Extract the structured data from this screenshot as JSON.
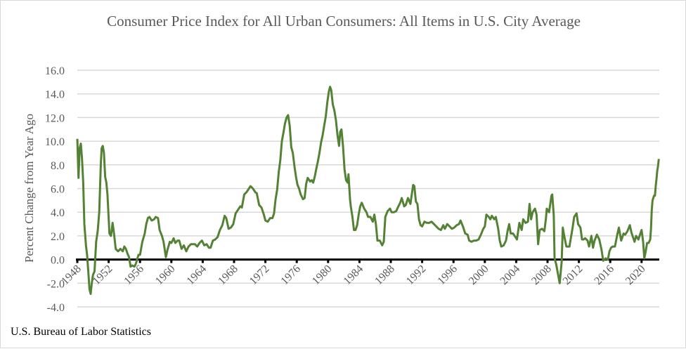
{
  "chart_data": {
    "type": "line",
    "title": "Consumer Price Index for All Urban Consumers: All Items in U.S. City Average",
    "xlabel": "",
    "ylabel": "Percent Change from Year Ago",
    "xlim": [
      1948,
      2022.2
    ],
    "ylim": [
      -4,
      16
    ],
    "yticks": [
      "-4.0",
      "-2.0",
      "0.0",
      "2.0",
      "4.0",
      "6.0",
      "8.0",
      "10.0",
      "12.0",
      "14.0",
      "16.0"
    ],
    "xticks": [
      "1948",
      "1952",
      "1956",
      "1960",
      "1964",
      "1968",
      "1972",
      "1976",
      "1980",
      "1984",
      "1988",
      "1992",
      "1996",
      "2000",
      "2004",
      "2008",
      "2012",
      "2016",
      "2020"
    ],
    "grid": true,
    "legend": "none",
    "line_color": "#548235",
    "series": [
      {
        "x": [
          1948.0,
          1948.15,
          1948.3,
          1948.45,
          1948.6,
          1948.75,
          1948.9,
          1949.1,
          1949.25,
          1949.4,
          1949.55,
          1949.7,
          1949.85,
          1950.0,
          1950.2,
          1950.4,
          1950.6,
          1950.8,
          1951.0,
          1951.1,
          1951.25,
          1951.4,
          1951.55,
          1951.7,
          1951.85,
          1952.0,
          1952.1,
          1952.3,
          1952.5,
          1952.7,
          1952.9,
          1953.2,
          1953.5,
          1953.8,
          1954.0,
          1954.2,
          1954.4,
          1954.6,
          1954.8,
          1955.0,
          1955.3,
          1955.5,
          1955.8,
          1956.0,
          1956.3,
          1956.6,
          1956.8,
          1957.0,
          1957.2,
          1957.5,
          1957.8,
          1958.0,
          1958.3,
          1958.5,
          1958.8,
          1959.0,
          1959.3,
          1959.5,
          1959.8,
          1960.0,
          1960.3,
          1960.5,
          1960.8,
          1961.0,
          1961.3,
          1961.6,
          1961.9,
          1962.2,
          1962.5,
          1962.8,
          1963.0,
          1963.3,
          1963.6,
          1963.9,
          1964.2,
          1964.5,
          1964.8,
          1965.0,
          1965.3,
          1965.6,
          1965.9,
          1966.2,
          1966.5,
          1966.8,
          1967.0,
          1967.3,
          1967.6,
          1967.9,
          1968.2,
          1968.5,
          1968.8,
          1969.0,
          1969.3,
          1969.6,
          1969.9,
          1970.1,
          1970.4,
          1970.7,
          1970.9,
          1971.2,
          1971.5,
          1971.8,
          1972.0,
          1972.3,
          1972.6,
          1972.9,
          1973.1,
          1973.3,
          1973.5,
          1973.7,
          1973.9,
          1974.1,
          1974.3,
          1974.5,
          1974.7,
          1974.9,
          1975.1,
          1975.3,
          1975.5,
          1975.7,
          1975.9,
          1976.1,
          1976.3,
          1976.5,
          1976.8,
          1977.0,
          1977.2,
          1977.4,
          1977.7,
          1977.9,
          1978.1,
          1978.3,
          1978.5,
          1978.7,
          1978.9,
          1979.1,
          1979.3,
          1979.5,
          1979.7,
          1979.9,
          1980.1,
          1980.25,
          1980.4,
          1980.6,
          1980.8,
          1981.0,
          1981.2,
          1981.4,
          1981.55,
          1981.7,
          1981.9,
          1982.1,
          1982.3,
          1982.5,
          1982.6,
          1982.8,
          1982.9,
          1983.1,
          1983.3,
          1983.5,
          1983.7,
          1983.9,
          1984.1,
          1984.3,
          1984.6,
          1984.9,
          1985.1,
          1985.4,
          1985.7,
          1985.9,
          1986.1,
          1986.3,
          1986.6,
          1986.9,
          1987.1,
          1987.3,
          1987.6,
          1987.9,
          1988.1,
          1988.4,
          1988.7,
          1988.9,
          1989.2,
          1989.4,
          1989.7,
          1989.9,
          1990.2,
          1990.5,
          1990.7,
          1990.85,
          1991.0,
          1991.2,
          1991.4,
          1991.6,
          1991.8,
          1992.0,
          1992.3,
          1992.6,
          1992.9,
          1993.2,
          1993.5,
          1993.8,
          1994.1,
          1994.4,
          1994.7,
          1994.9,
          1995.2,
          1995.5,
          1995.8,
          1996.1,
          1996.4,
          1996.7,
          1996.9,
          1997.2,
          1997.5,
          1997.8,
          1998.0,
          1998.3,
          1998.6,
          1998.9,
          1999.2,
          1999.5,
          1999.8,
          2000.0,
          2000.2,
          2000.5,
          2000.7,
          2000.9,
          2001.2,
          2001.4,
          2001.7,
          2001.9,
          2002.1,
          2002.4,
          2002.7,
          2002.9,
          2003.1,
          2003.3,
          2003.6,
          2003.9,
          2004.1,
          2004.4,
          2004.7,
          2004.9,
          2005.2,
          2005.5,
          2005.7,
          2005.9,
          2006.1,
          2006.4,
          2006.6,
          2006.8,
          2007.0,
          2007.3,
          2007.6,
          2007.8,
          2007.9,
          2008.2,
          2008.5,
          2008.6,
          2008.8,
          2008.9,
          2009.1,
          2009.35,
          2009.55,
          2009.8,
          2009.95,
          2010.1,
          2010.4,
          2010.8,
          2010.9,
          2011.2,
          2011.4,
          2011.7,
          2011.9,
          2012.2,
          2012.4,
          2012.6,
          2012.8,
          2013.1,
          2013.3,
          2013.6,
          2013.8,
          2014.0,
          2014.3,
          2014.6,
          2014.9,
          2015.1,
          2015.4,
          2015.7,
          2015.9,
          2016.1,
          2016.3,
          2016.6,
          2016.9,
          2017.1,
          2017.4,
          2017.7,
          2017.9,
          2018.2,
          2018.5,
          2018.7,
          2018.9,
          2019.1,
          2019.3,
          2019.6,
          2019.9,
          2020.0,
          2020.2,
          2020.35,
          2020.5,
          2020.7,
          2020.9,
          2021.1,
          2021.2,
          2021.3,
          2021.4,
          2021.6,
          2021.7,
          2021.8,
          2021.9,
          2022.0,
          2022.1,
          2022.2
        ],
        "y": [
          10.2,
          6.9,
          9.4,
          9.8,
          8.5,
          6.5,
          3.0,
          1.2,
          0.4,
          -1.0,
          -2.5,
          -2.9,
          -2.0,
          -1.3,
          -1.0,
          1.5,
          2.4,
          4.0,
          8.0,
          9.4,
          9.6,
          9.0,
          7.0,
          6.5,
          5.5,
          3.5,
          2.2,
          2.0,
          3.1,
          2.1,
          0.9,
          0.7,
          0.9,
          0.7,
          1.1,
          0.9,
          0.5,
          0.2,
          -0.6,
          -0.5,
          -0.6,
          -0.3,
          0.4,
          0.4,
          1.5,
          2.2,
          3.0,
          3.5,
          3.6,
          3.3,
          3.4,
          3.6,
          3.5,
          2.5,
          2.0,
          1.5,
          0.2,
          0.8,
          1.5,
          1.4,
          1.8,
          1.4,
          1.6,
          1.6,
          0.9,
          1.2,
          0.7,
          1.1,
          1.3,
          1.3,
          1.3,
          1.1,
          1.4,
          1.6,
          1.2,
          1.3,
          1.0,
          1.0,
          1.6,
          1.7,
          1.9,
          2.5,
          2.9,
          3.7,
          3.5,
          2.6,
          2.7,
          3.0,
          3.9,
          4.2,
          4.5,
          4.4,
          5.5,
          5.7,
          6.0,
          6.2,
          6.0,
          5.7,
          5.6,
          4.6,
          4.4,
          3.8,
          3.3,
          3.2,
          3.5,
          3.5,
          3.9,
          5.1,
          5.9,
          7.4,
          8.4,
          10.0,
          10.7,
          11.5,
          12.0,
          12.2,
          11.3,
          9.5,
          9.0,
          7.9,
          7.0,
          6.3,
          6.0,
          5.5,
          5.1,
          5.2,
          6.4,
          6.9,
          6.6,
          6.7,
          6.5,
          7.0,
          7.7,
          8.3,
          9.0,
          9.9,
          10.5,
          11.3,
          12.1,
          13.3,
          14.2,
          14.6,
          14.3,
          13.1,
          12.6,
          11.8,
          10.5,
          9.6,
          10.8,
          11.0,
          9.6,
          7.6,
          6.7,
          6.5,
          7.2,
          5.1,
          4.5,
          3.6,
          2.5,
          2.5,
          2.9,
          3.8,
          4.5,
          4.8,
          4.3,
          4.0,
          3.6,
          3.6,
          3.2,
          3.8,
          3.0,
          1.6,
          1.6,
          1.2,
          1.5,
          3.6,
          4.1,
          4.3,
          4.0,
          4.0,
          4.1,
          4.4,
          4.8,
          5.2,
          4.5,
          4.6,
          5.2,
          4.7,
          5.6,
          6.3,
          6.2,
          4.9,
          4.7,
          3.4,
          2.9,
          2.8,
          3.2,
          3.1,
          3.1,
          3.2,
          3.0,
          2.8,
          2.6,
          2.5,
          2.9,
          2.6,
          3.0,
          2.8,
          2.6,
          2.7,
          2.9,
          3.0,
          3.3,
          2.8,
          2.2,
          2.1,
          1.6,
          1.5,
          1.6,
          1.6,
          1.7,
          2.1,
          2.6,
          2.8,
          3.8,
          3.6,
          3.4,
          3.7,
          3.4,
          3.6,
          2.6,
          1.6,
          1.1,
          1.2,
          1.6,
          2.4,
          3.0,
          2.2,
          2.2,
          1.9,
          1.7,
          3.1,
          2.5,
          3.4,
          3.1,
          3.2,
          4.7,
          3.4,
          4.0,
          4.3,
          3.8,
          1.3,
          2.5,
          2.6,
          2.4,
          3.5,
          4.3,
          4.0,
          5.4,
          5.5,
          3.7,
          0.1,
          -0.4,
          -1.3,
          -2.0,
          -0.2,
          2.7,
          2.1,
          1.1,
          1.1,
          1.5,
          2.7,
          3.6,
          3.9,
          3.0,
          2.7,
          1.7,
          1.7,
          1.8,
          1.6,
          1.1,
          2.0,
          1.0,
          1.6,
          2.1,
          1.7,
          0.8,
          -0.1,
          0.1,
          0.0,
          0.7,
          1.0,
          1.1,
          1.1,
          2.1,
          2.7,
          1.6,
          2.2,
          2.1,
          2.4,
          2.9,
          2.3,
          1.9,
          1.5,
          2.0,
          1.7,
          2.3,
          2.5,
          1.5,
          0.1,
          0.6,
          1.4,
          1.4,
          1.7,
          2.6,
          4.2,
          5.0,
          5.4,
          5.4,
          6.2,
          6.8,
          7.5,
          7.9,
          8.5
        ]
      }
    ]
  },
  "source": "U.S. Bureau of Labor Statistics"
}
